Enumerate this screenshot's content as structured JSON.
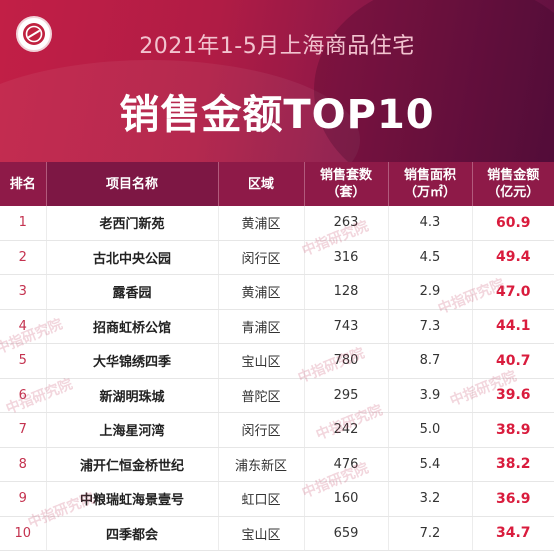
{
  "header": {
    "subtitle": "2021年1-5月上海商品住宅",
    "title": "销售金额TOP10",
    "logo_icon": "institute-seal-icon"
  },
  "table": {
    "columns": {
      "rank": "排名",
      "name": "项目名称",
      "district": "区域",
      "units": "销售套数",
      "units_unit": "（套）",
      "area": "销售面积",
      "area_unit": "（万㎡）",
      "amount": "销售金额",
      "amount_unit": "（亿元）"
    },
    "rows": [
      {
        "rank": "1",
        "name": "老西门新苑",
        "district": "黄浦区",
        "units": "263",
        "area": "4.3",
        "amount": "60.9"
      },
      {
        "rank": "2",
        "name": "古北中央公园",
        "district": "闵行区",
        "units": "316",
        "area": "4.5",
        "amount": "49.4"
      },
      {
        "rank": "3",
        "name": "露香园",
        "district": "黄浦区",
        "units": "128",
        "area": "2.9",
        "amount": "47.0"
      },
      {
        "rank": "4",
        "name": "招商虹桥公馆",
        "district": "青浦区",
        "units": "743",
        "area": "7.3",
        "amount": "44.1"
      },
      {
        "rank": "5",
        "name": "大华锦绣四季",
        "district": "宝山区",
        "units": "780",
        "area": "8.7",
        "amount": "40.7"
      },
      {
        "rank": "6",
        "name": "新湖明珠城",
        "district": "普陀区",
        "units": "295",
        "area": "3.9",
        "amount": "39.6"
      },
      {
        "rank": "7",
        "name": "上海星河湾",
        "district": "闵行区",
        "units": "242",
        "area": "5.0",
        "amount": "38.9"
      },
      {
        "rank": "8",
        "name": "浦开仁恒金桥世纪",
        "district": "浦东新区",
        "units": "476",
        "area": "5.4",
        "amount": "38.2"
      },
      {
        "rank": "9",
        "name": "中粮瑞虹海景壹号",
        "district": "虹口区",
        "units": "160",
        "area": "3.2",
        "amount": "36.9"
      },
      {
        "rank": "10",
        "name": "四季都会",
        "district": "宝山区",
        "units": "659",
        "area": "7.2",
        "amount": "34.7"
      }
    ]
  },
  "watermark": {
    "text": "中指研究院"
  },
  "colors": {
    "banner": "#b01c45",
    "header_row": "#8e1a48",
    "amount_text": "#d91c3d",
    "rank_text": "#c4324f"
  }
}
